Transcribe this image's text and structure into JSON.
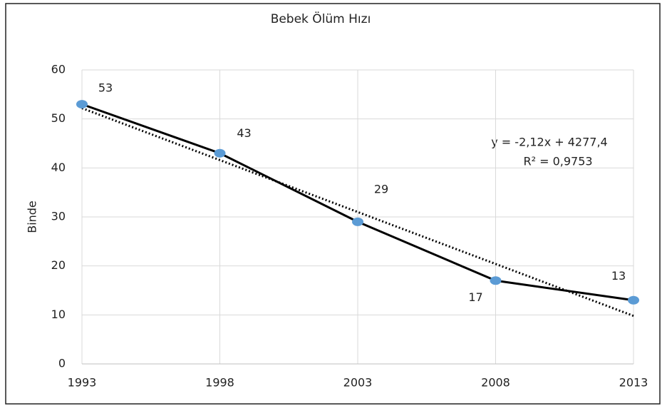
{
  "chart_data": {
    "type": "line",
    "title": "Bebek Ölüm Hızı",
    "y_label": "Binde",
    "x": [
      1993,
      1998,
      2003,
      2008,
      2013
    ],
    "series": [
      {
        "color": "#000000",
        "marker_color": "#5b9bd5",
        "values": [
          53,
          43,
          29,
          17,
          13
        ]
      }
    ],
    "trendline": {
      "equation": "y = -2,12x + 4277,4",
      "r_squared": "R² = 0,9753",
      "x": [
        1993,
        2013
      ],
      "values": [
        52.2,
        9.8
      ]
    },
    "xlim": [
      1993,
      2013
    ],
    "xticks": [
      1993,
      1998,
      2003,
      2008,
      2013
    ],
    "ylim": [
      0,
      60
    ],
    "yticks": [
      0,
      10,
      20,
      30,
      40,
      50,
      60
    ],
    "grid": true
  }
}
